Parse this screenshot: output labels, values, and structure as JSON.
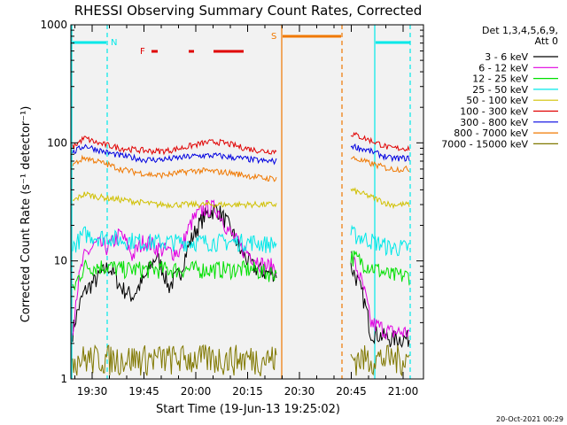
{
  "chart_data": {
    "type": "line",
    "title": "RHESSI Observing Summary Count Rates, Corrected",
    "ylabel": "Corrected Count Rate (s⁻¹ detector⁻¹)",
    "xlabel": "Start Time (19-Jun-13 19:25:02)",
    "x_ticks": [
      "19:30",
      "19:45",
      "20:00",
      "20:15",
      "20:30",
      "20:45",
      "21:00"
    ],
    "y_ticks": [
      "1",
      "10",
      "100",
      "1000"
    ],
    "y_scale": "log",
    "ylim": [
      1,
      1000
    ],
    "xlim": [
      "19:25:02",
      "21:03"
    ],
    "legend_header": [
      "Det 1,3,4,5,6,9,",
      "Att 0"
    ],
    "footer": "20-Oct-2021 00:29",
    "flag_labels": {
      "N": "N",
      "F": "F",
      "S": "S"
    },
    "series": [
      {
        "name": "3 - 6 keV",
        "color": "#000000",
        "seg1": [
          2.5,
          5.5,
          7,
          9,
          6,
          5,
          7,
          11,
          6,
          8,
          16,
          24,
          28,
          20,
          12,
          9,
          8,
          8
        ],
        "seg2": [
          9,
          2.5,
          2.2,
          2.2
        ]
      },
      {
        "name": "6 - 12 keV",
        "color": "#e000e0",
        "seg1": [
          2.5,
          11,
          14,
          13,
          17,
          11,
          15,
          13,
          12,
          12,
          22,
          28,
          28,
          18,
          13,
          11,
          9,
          9
        ],
        "seg2": [
          11,
          3,
          2.5,
          2.5
        ]
      },
      {
        "name": "12 - 25 keV",
        "color": "#00e000",
        "seg1": [
          5.5,
          9,
          9,
          9,
          8.5,
          8.5,
          8.5,
          8.5,
          8.5,
          8.5,
          8.5,
          8.5,
          8.5,
          8.5,
          8.5,
          8.5,
          8,
          8
        ],
        "seg2": [
          11,
          9,
          7.5,
          7.5
        ]
      },
      {
        "name": "25 - 50 keV",
        "color": "#00e8e8",
        "seg1": [
          13,
          17,
          16,
          16,
          15,
          15,
          14.5,
          14.5,
          14.5,
          14.5,
          14.5,
          14.5,
          14.5,
          14.5,
          14.5,
          14.5,
          14,
          14
        ],
        "seg2": [
          17,
          15,
          13,
          13
        ]
      },
      {
        "name": "50 - 100 keV",
        "color": "#d0c000",
        "seg1": [
          32,
          37,
          35,
          34,
          33,
          32,
          31,
          30,
          30,
          30,
          30,
          30,
          30,
          30,
          30,
          30,
          30,
          30
        ],
        "seg2": [
          40,
          35,
          30,
          30
        ]
      },
      {
        "name": "100 - 300 keV",
        "color": "#e00000",
        "seg1": [
          92,
          110,
          100,
          95,
          90,
          88,
          86,
          85,
          86,
          90,
          95,
          100,
          102,
          98,
          92,
          88,
          85,
          85
        ],
        "seg2": [
          120,
          105,
          90,
          90
        ]
      },
      {
        "name": "300 - 800 keV",
        "color": "#0000e0",
        "seg1": [
          82,
          95,
          88,
          82,
          78,
          75,
          72,
          72,
          73,
          75,
          77,
          78,
          78,
          76,
          74,
          72,
          70,
          70
        ],
        "seg2": [
          95,
          85,
          74,
          74
        ]
      },
      {
        "name": "800 - 7000 keV",
        "color": "#f07800",
        "seg1": [
          65,
          75,
          70,
          65,
          60,
          57,
          55,
          53,
          54,
          56,
          58,
          58,
          57,
          56,
          54,
          52,
          50,
          50
        ],
        "seg2": [
          75,
          67,
          60,
          60
        ]
      },
      {
        "name": "7000 - 15000 keV",
        "color": "#807800",
        "seg1": [
          1.5,
          1.5,
          1.5,
          1.5,
          1.5,
          1.5,
          1.5,
          1.5,
          1.5,
          1.5,
          1.5,
          1.5,
          1.5,
          1.5,
          1.5,
          1.5,
          1.5,
          1.5
        ],
        "seg2": [
          1.5,
          1.5,
          1.5,
          1.5
        ]
      }
    ]
  }
}
